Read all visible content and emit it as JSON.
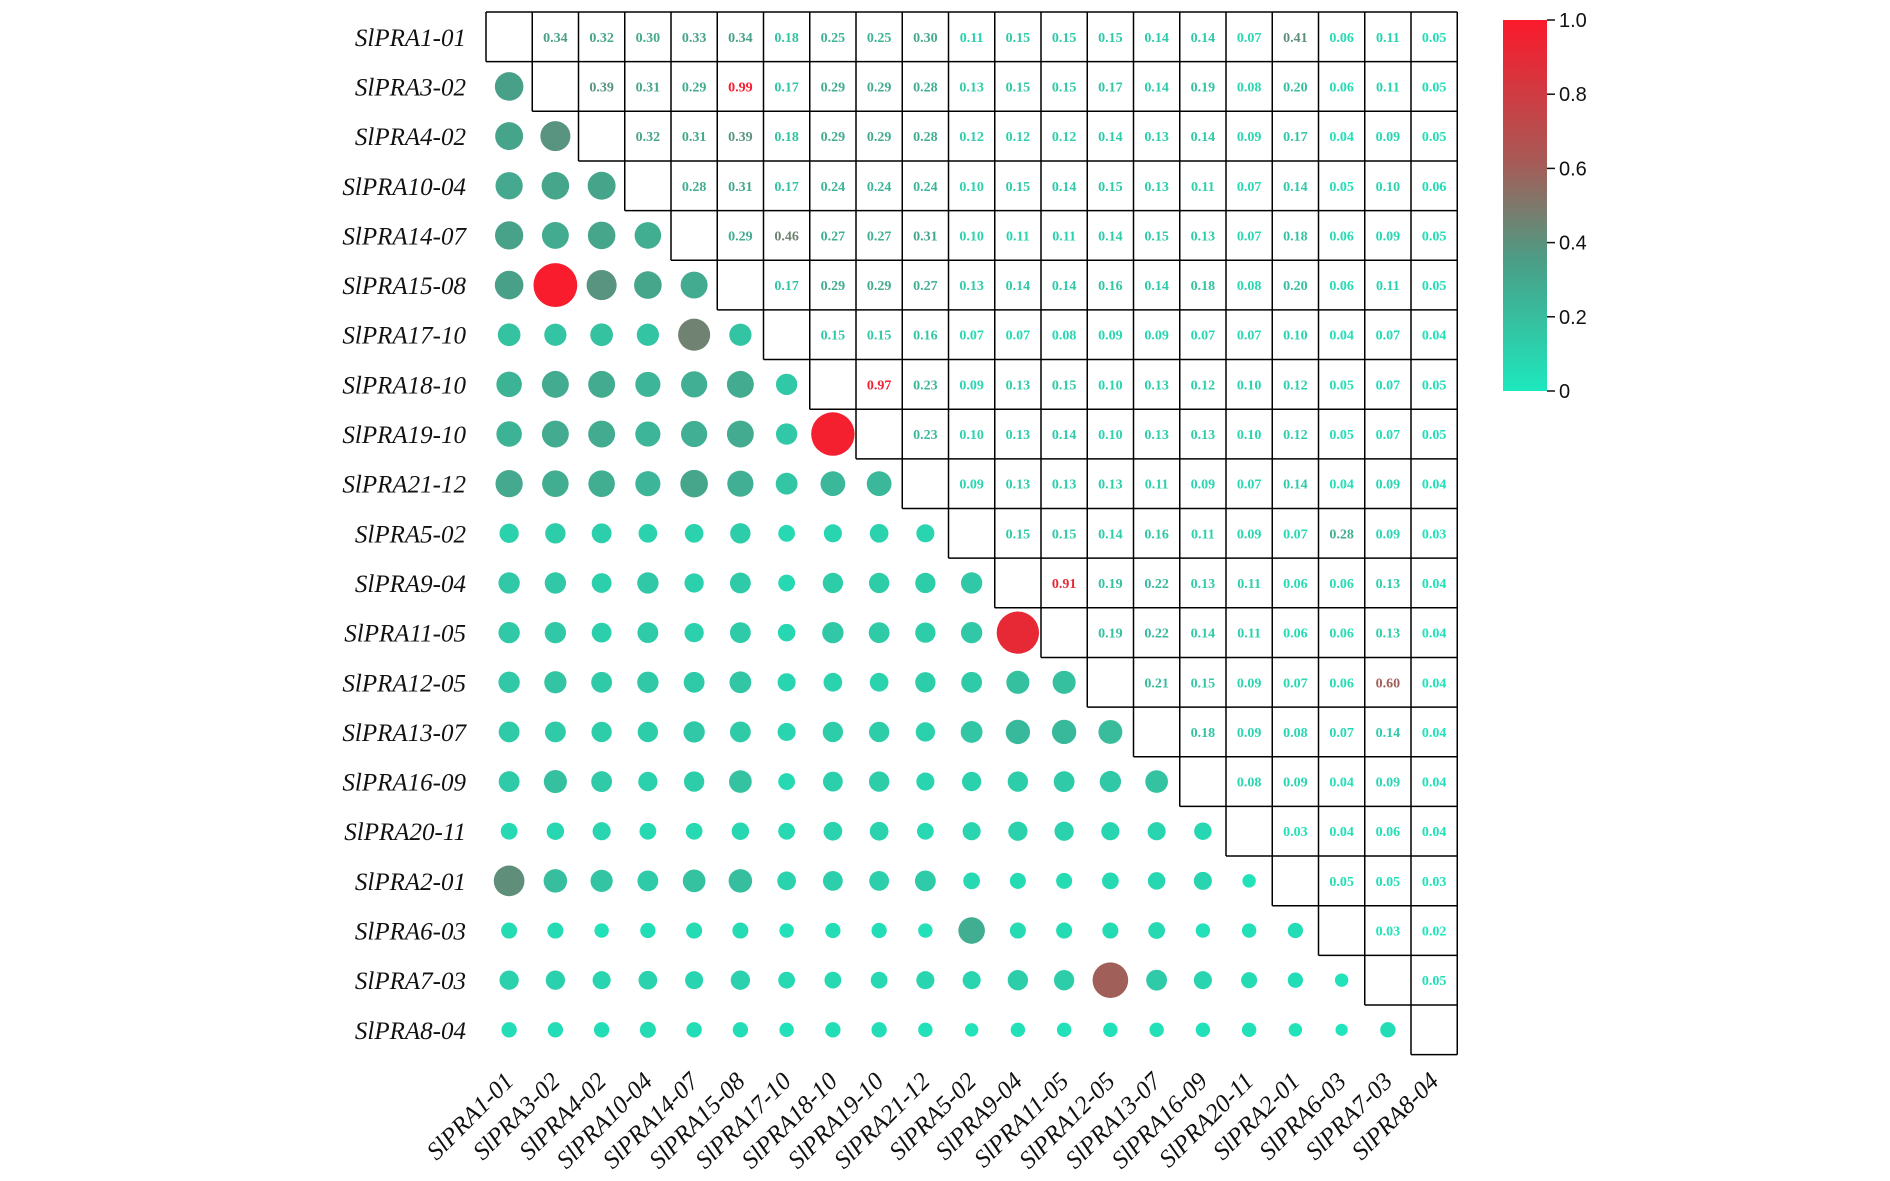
{
  "chart_data": {
    "type": "heatmap",
    "style": "correlation matrix: circles in lower triangle, numeric values in upper triangle",
    "labels": [
      "SlPRA1-01",
      "SlPRA3-02",
      "SlPRA4-02",
      "SlPRA10-04",
      "SlPRA14-07",
      "SlPRA15-08",
      "SlPRA17-10",
      "SlPRA18-10",
      "SlPRA19-10",
      "SlPRA21-12",
      "SlPRA5-02",
      "SlPRA9-04",
      "SlPRA11-05",
      "SlPRA12-05",
      "SlPRA13-07",
      "SlPRA16-09",
      "SlPRA20-11",
      "SlPRA2-01",
      "SlPRA6-03",
      "SlPRA7-03",
      "SlPRA8-04"
    ],
    "upper_values": [
      [
        "0.34",
        "0.32",
        "0.30",
        "0.33",
        "0.34",
        "0.18",
        "0.25",
        "0.25",
        "0.30",
        "0.11",
        "0.15",
        "0.15",
        "0.15",
        "0.14",
        "0.14",
        "0.07",
        "0.41",
        "0.06",
        "0.11",
        "0.05"
      ],
      [
        "0.39",
        "0.31",
        "0.29",
        "0.99",
        "0.17",
        "0.29",
        "0.29",
        "0.28",
        "0.13",
        "0.15",
        "0.15",
        "0.17",
        "0.14",
        "0.19",
        "0.08",
        "0.20",
        "0.06",
        "0.11",
        "0.05"
      ],
      [
        "0.32",
        "0.31",
        "0.39",
        "0.18",
        "0.29",
        "0.29",
        "0.28",
        "0.12",
        "0.12",
        "0.12",
        "0.14",
        "0.13",
        "0.14",
        "0.09",
        "0.17",
        "0.04",
        "0.09",
        "0.05"
      ],
      [
        "0.28",
        "0.31",
        "0.17",
        "0.24",
        "0.24",
        "0.24",
        "0.10",
        "0.15",
        "0.14",
        "0.15",
        "0.13",
        "0.11",
        "0.07",
        "0.14",
        "0.05",
        "0.10",
        "0.06"
      ],
      [
        "0.29",
        "0.46",
        "0.27",
        "0.27",
        "0.31",
        "0.10",
        "0.11",
        "0.11",
        "0.14",
        "0.15",
        "0.13",
        "0.07",
        "0.18",
        "0.06",
        "0.09",
        "0.05"
      ],
      [
        "0.17",
        "0.29",
        "0.29",
        "0.27",
        "0.13",
        "0.14",
        "0.14",
        "0.16",
        "0.14",
        "0.18",
        "0.08",
        "0.20",
        "0.06",
        "0.11",
        "0.05"
      ],
      [
        "0.15",
        "0.15",
        "0.16",
        "0.07",
        "0.07",
        "0.08",
        "0.09",
        "0.09",
        "0.07",
        "0.07",
        "0.10",
        "0.04",
        "0.07",
        "0.04"
      ],
      [
        "0.97",
        "0.23",
        "0.09",
        "0.13",
        "0.15",
        "0.10",
        "0.13",
        "0.12",
        "0.10",
        "0.12",
        "0.05",
        "0.07",
        "0.05"
      ],
      [
        "0.23",
        "0.10",
        "0.13",
        "0.14",
        "0.10",
        "0.13",
        "0.13",
        "0.10",
        "0.12",
        "0.05",
        "0.07",
        "0.05"
      ],
      [
        "0.09",
        "0.13",
        "0.13",
        "0.13",
        "0.11",
        "0.09",
        "0.07",
        "0.14",
        "0.04",
        "0.09",
        "0.04"
      ],
      [
        "0.15",
        "0.15",
        "0.14",
        "0.16",
        "0.11",
        "0.09",
        "0.07",
        "0.28",
        "0.09",
        "0.03"
      ],
      [
        "0.91",
        "0.19",
        "0.22",
        "0.13",
        "0.11",
        "0.06",
        "0.06",
        "0.13",
        "0.04"
      ],
      [
        "0.19",
        "0.22",
        "0.14",
        "0.11",
        "0.06",
        "0.06",
        "0.13",
        "0.04"
      ],
      [
        "0.21",
        "0.15",
        "0.09",
        "0.07",
        "0.06",
        "0.60",
        "0.04"
      ],
      [
        "0.18",
        "0.09",
        "0.08",
        "0.07",
        "0.14",
        "0.04"
      ],
      [
        "0.08",
        "0.09",
        "0.04",
        "0.09",
        "0.04"
      ],
      [
        "0.03",
        "0.04",
        "0.06",
        "0.04"
      ],
      [
        "0.05",
        "0.05",
        "0.03"
      ],
      [
        "0.03",
        "0.02"
      ],
      [
        "0.05"
      ],
      []
    ],
    "colorbar": {
      "min": 0,
      "max": 1,
      "ticks": [
        "0",
        "0.2",
        "0.4",
        "0.6",
        "0.8",
        "1.0"
      ],
      "colors": [
        "#1de8be",
        "#4a9e86",
        "#a85a56",
        "#fb1a2c"
      ]
    }
  }
}
